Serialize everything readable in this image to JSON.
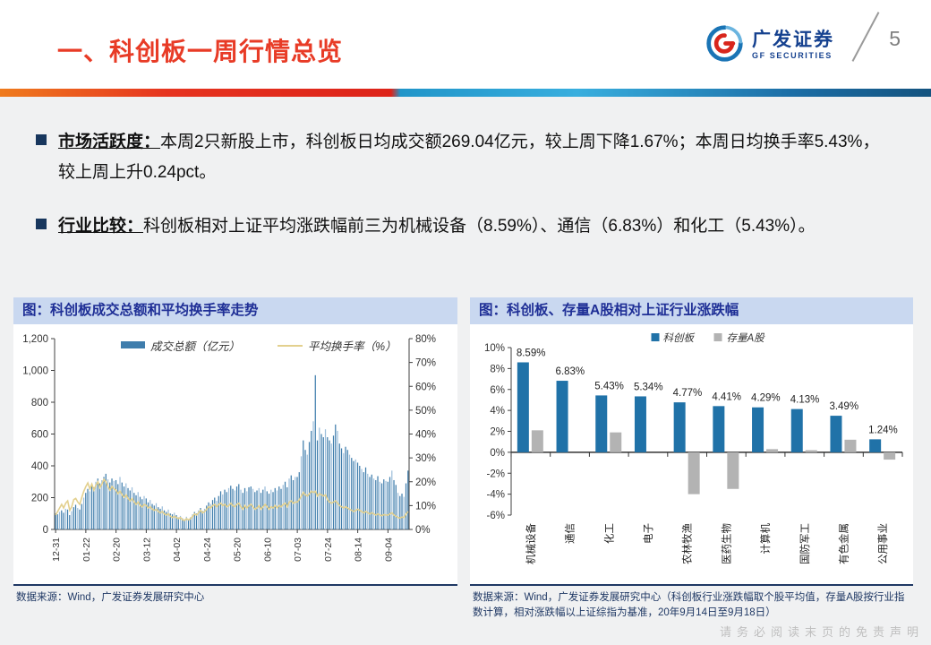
{
  "header": {
    "title": "一、科创板一周行情总览",
    "page_number": "5",
    "logo_cn": "广发证券",
    "logo_en": "GF SECURITIES"
  },
  "bullets": [
    {
      "label": "市场活跃度：",
      "text": "本周2只新股上市，科创板日均成交额269.04亿元，较上周下降1.67%；本周日均换手率5.43%，较上周上升0.24pct。"
    },
    {
      "label": "行业比较：",
      "text": "科创板相对上证平均涨跌幅前三为机械设备（8.59%）、通信（6.83%）和化工（5.43%）。"
    }
  ],
  "left_panel": {
    "title": "图：科创板成交总额和平均换手率走势",
    "source": "数据来源：Wind，广发证券发展研究中心"
  },
  "right_panel": {
    "title": "图：科创板、存量A股相对上证行业涨跌幅",
    "source": "数据来源：Wind，广发证券发展研究中心（科创板行业涨跌幅取个股平均值，存量A股按行业指数计算，相对涨跌幅以上证综指为基准，20年9月14日至9月18日）"
  },
  "watermark": "请务必阅读末页的免责声明",
  "colors": {
    "title_red": "#e83b26",
    "band_blue_bg": "#c9d8f0",
    "band_blue_text": "#1f2f96",
    "bullet_navy": "#17365d",
    "bar_dark": "#3f7dac",
    "bar_light": "#9dbfdb",
    "line_yellow": "#e3d08e",
    "kcb_blue": "#2072a8",
    "astock_gray": "#b3b3b3",
    "axis_gray": "#404040",
    "source_navy": "#1f3864"
  },
  "chart_data": [
    {
      "type": "combo",
      "title": "图：科创板成交总额和平均换手率走势",
      "legend_position": "top",
      "x_tick_labels": [
        "12-31",
        "01-22",
        "02-20",
        "03-12",
        "04-02",
        "04-24",
        "05-20",
        "06-10",
        "07-03",
        "07-24",
        "08-14",
        "09-04"
      ],
      "x_tick_indices": [
        0,
        15,
        30,
        45,
        60,
        75,
        90,
        105,
        120,
        135,
        150,
        165
      ],
      "left_axis": {
        "min": 0,
        "max": 1200,
        "step": 200,
        "labels": [
          "0",
          "200",
          "400",
          "600",
          "800",
          "1,000",
          "1,200"
        ]
      },
      "right_axis": {
        "min": 0,
        "max": 80,
        "step": 10,
        "labels": [
          "0%",
          "10%",
          "20%",
          "30%",
          "40%",
          "50%",
          "60%",
          "70%",
          "80%"
        ]
      },
      "series": [
        {
          "name": "成交总额（亿元）",
          "type": "bar",
          "axis": "left",
          "values": [
            100,
            95,
            110,
            120,
            105,
            130,
            125,
            90,
            115,
            140,
            155,
            135,
            125,
            160,
            200,
            230,
            255,
            240,
            280,
            265,
            300,
            320,
            290,
            310,
            330,
            350,
            315,
            295,
            320,
            305,
            310,
            285,
            330,
            295,
            270,
            290,
            260,
            245,
            265,
            230,
            215,
            235,
            205,
            190,
            210,
            195,
            170,
            185,
            160,
            150,
            165,
            140,
            130,
            145,
            120,
            110,
            125,
            100,
            95,
            105,
            90,
            75,
            85,
            70,
            60,
            80,
            65,
            75,
            95,
            110,
            100,
            120,
            135,
            115,
            130,
            150,
            170,
            160,
            185,
            200,
            180,
            210,
            240,
            220,
            250,
            235,
            260,
            275,
            255,
            245,
            270,
            285,
            250,
            230,
            260,
            240,
            265,
            270,
            255,
            235,
            245,
            260,
            230,
            250,
            270,
            240,
            225,
            250,
            235,
            260,
            245,
            270,
            255,
            280,
            300,
            265,
            320,
            340,
            310,
            330,
            330,
            360,
            460,
            560,
            500,
            470,
            550,
            620,
            680,
            970,
            560,
            640,
            600,
            580,
            630,
            580,
            560,
            540,
            590,
            660,
            620,
            540,
            510,
            480,
            520,
            500,
            470,
            450,
            430,
            440,
            420,
            400,
            380,
            360,
            390,
            350,
            330,
            345,
            320,
            310,
            335,
            300,
            290,
            315,
            305,
            300,
            330,
            370,
            310,
            280,
            230,
            210,
            225,
            205,
            290,
            370
          ]
        },
        {
          "name": "平均换手率（%）",
          "type": "line",
          "axis": "right",
          "values": [
            6,
            7.5,
            9,
            10.5,
            9,
            11,
            12,
            8,
            9.5,
            12.5,
            13,
            11.5,
            10.5,
            13.5,
            16,
            18,
            19.5,
            17,
            19,
            16.5,
            18.5,
            20,
            17.5,
            19,
            21,
            20,
            18,
            16.5,
            18,
            17,
            16.5,
            15,
            16,
            14.5,
            13.5,
            14.5,
            13,
            12,
            13,
            11.5,
            10.5,
            11.5,
            10,
            9.5,
            10.5,
            10,
            9,
            9.5,
            8.5,
            8,
            8.5,
            7.5,
            7,
            7.5,
            6.5,
            6,
            6.5,
            5.5,
            5,
            5.5,
            5,
            4.5,
            5,
            4,
            3.8,
            4.5,
            4,
            4.5,
            5.5,
            6.5,
            6,
            7,
            8,
            7,
            7.5,
            8.5,
            9.5,
            9,
            10,
            10.5,
            9.5,
            10.5,
            11,
            10,
            10.5,
            9.5,
            10,
            11,
            10,
            9.5,
            10.5,
            11,
            9.5,
            8.5,
            10,
            9,
            10,
            10.5,
            9.5,
            8.5,
            9,
            10,
            8.5,
            9.5,
            10.5,
            9.5,
            8.5,
            9.5,
            9,
            10,
            9,
            10,
            9.5,
            10.5,
            11,
            9.5,
            11.5,
            12,
            11,
            11.5,
            11.5,
            12.5,
            14,
            15.5,
            14.5,
            14,
            15,
            16,
            15.5,
            16,
            14,
            15,
            14.5,
            14,
            14.5,
            12.5,
            11.5,
            11,
            11.5,
            12,
            11,
            10,
            9.5,
            9,
            9.5,
            9,
            8.5,
            8,
            7.5,
            8,
            8.5,
            8,
            7.5,
            7,
            7.5,
            7,
            6.5,
            7,
            6.5,
            6,
            6.5,
            6,
            5.8,
            6.2,
            6,
            6,
            6.5,
            7,
            6,
            5.5,
            5,
            4.8,
            5.2,
            5,
            6.5,
            7.5
          ]
        }
      ]
    },
    {
      "type": "bar",
      "title": "图：科创板、存量A股相对上证行业涨跌幅",
      "legend_position": "top",
      "categories": [
        "机械设备",
        "通信",
        "化工",
        "电子",
        "农林牧渔",
        "医药生物",
        "计算机",
        "国防军工",
        "有色金属",
        "公用事业"
      ],
      "series": [
        {
          "name": "科创板",
          "values": [
            8.59,
            6.83,
            5.43,
            5.34,
            4.77,
            4.41,
            4.29,
            4.13,
            3.49,
            1.24
          ]
        },
        {
          "name": "存量A股",
          "values": [
            2.1,
            0,
            1.9,
            0,
            -4.0,
            -3.5,
            0.3,
            0.2,
            1.2,
            -0.7
          ]
        }
      ],
      "labels": [
        "8.59%",
        "6.83%",
        "5.43%",
        "5.34%",
        "4.77%",
        "4.41%",
        "4.29%",
        "4.13%",
        "3.49%",
        "1.24%"
      ],
      "y_axis": {
        "min": -6,
        "max": 10,
        "step": 2,
        "labels": [
          "10%",
          "8%",
          "6%",
          "4%",
          "2%",
          "0%",
          "-2%",
          "-4%",
          "-6%"
        ]
      }
    }
  ]
}
